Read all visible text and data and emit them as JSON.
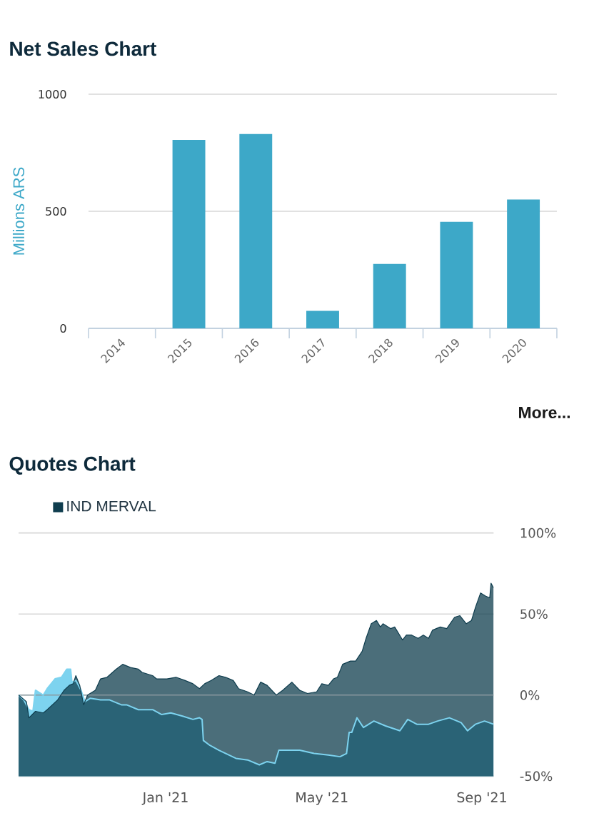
{
  "chart_data": [
    {
      "type": "bar",
      "title": "Net Sales Chart",
      "ylabel": "Millions ARS",
      "categories": [
        "2014",
        "2015",
        "2016",
        "2017",
        "2018",
        "2019",
        "2020"
      ],
      "values": [
        null,
        805,
        830,
        75,
        275,
        455,
        550
      ],
      "color": "#3da8c8",
      "ylim": [
        0,
        1000
      ],
      "yticks": [
        0,
        500,
        1000
      ],
      "grid": "y",
      "annotations": [
        "More..."
      ]
    },
    {
      "type": "area",
      "title": "Quotes Chart",
      "series": [
        {
          "color": "#7dd3ef",
          "x": [
            "2020-09-10",
            "2020-09-14",
            "2020-09-18",
            "2020-09-21",
            "2020-09-23",
            "2020-09-29",
            "2020-10-02",
            "2020-10-08",
            "2020-10-13",
            "2020-10-17",
            "2020-10-20",
            "2020-10-21",
            "2020-10-24",
            "2020-10-28",
            "2020-10-31",
            "2020-11-04",
            "2020-11-12",
            "2020-11-19",
            "2020-11-28",
            "2020-12-02",
            "2020-12-11",
            "2020-12-22",
            "2020-12-29",
            "2021-01-05",
            "2021-01-14",
            "2021-01-22",
            "2021-01-27",
            "2021-01-29",
            "2021-01-30",
            "2021-02-04",
            "2021-02-11",
            "2021-02-24",
            "2021-03-05",
            "2021-03-14",
            "2021-03-20",
            "2021-03-26",
            "2021-03-29",
            "2021-04-03",
            "2021-04-14",
            "2021-04-25",
            "2021-05-06",
            "2021-05-15",
            "2021-05-20",
            "2021-05-22",
            "2021-05-24",
            "2021-05-28",
            "2021-06-02",
            "2021-06-10",
            "2021-06-19",
            "2021-06-30",
            "2021-07-06",
            "2021-07-13",
            "2021-07-22",
            "2021-07-29",
            "2021-08-07",
            "2021-08-16",
            "2021-08-21",
            "2021-08-27",
            "2021-09-03",
            "2021-09-10"
          ],
          "values": [
            0,
            -3,
            -9,
            -10,
            3,
            0,
            4,
            10,
            11,
            16,
            16,
            8,
            9,
            3,
            -4,
            -2,
            -3,
            -3,
            -6,
            -6,
            -9,
            -9,
            -12,
            -11,
            -13,
            -15,
            -14,
            -15,
            -28,
            -31,
            -34,
            -39,
            -40,
            -43,
            -41,
            -42,
            -34,
            -34,
            -34,
            -36,
            -37,
            -38,
            -36,
            -23,
            -23,
            -14,
            -20,
            -16,
            -19,
            -22,
            -15,
            -18,
            -18,
            -16,
            -14,
            -17,
            -22,
            -18,
            -16,
            -18
          ]
        },
        {
          "name": "IND MERVAL",
          "color": "#0f3d4e",
          "x": [
            "2020-09-10",
            "2020-09-16",
            "2020-09-18",
            "2020-09-23",
            "2020-09-29",
            "2020-10-02",
            "2020-10-10",
            "2020-10-15",
            "2020-10-19",
            "2020-10-22",
            "2020-10-24",
            "2020-10-27",
            "2020-10-30",
            "2020-11-02",
            "2020-11-08",
            "2020-11-12",
            "2020-11-17",
            "2020-11-24",
            "2020-11-29",
            "2020-12-05",
            "2020-12-11",
            "2020-12-14",
            "2020-12-22",
            "2020-12-25",
            "2021-01-02",
            "2021-01-09",
            "2021-01-16",
            "2021-01-22",
            "2021-01-27",
            "2021-01-31",
            "2021-02-05",
            "2021-02-11",
            "2021-02-16",
            "2021-02-22",
            "2021-02-26",
            "2021-03-05",
            "2021-03-10",
            "2021-03-15",
            "2021-03-20",
            "2021-03-27",
            "2021-04-01",
            "2021-04-08",
            "2021-04-14",
            "2021-04-20",
            "2021-04-27",
            "2021-05-01",
            "2021-05-06",
            "2021-05-10",
            "2021-05-13",
            "2021-05-17",
            "2021-05-23",
            "2021-05-27",
            "2021-06-01",
            "2021-06-04",
            "2021-06-08",
            "2021-06-12",
            "2021-06-15",
            "2021-06-17",
            "2021-06-23",
            "2021-06-26",
            "2021-07-02",
            "2021-07-05",
            "2021-07-09",
            "2021-07-14",
            "2021-07-18",
            "2021-07-22",
            "2021-07-25",
            "2021-07-31",
            "2021-08-05",
            "2021-08-11",
            "2021-08-15",
            "2021-08-20",
            "2021-08-24",
            "2021-08-27",
            "2021-08-31",
            "2021-09-04",
            "2021-09-07",
            "2021-09-08",
            "2021-09-10"
          ],
          "values": [
            0,
            -4,
            -14,
            -10,
            -11,
            -9,
            -3,
            3,
            6,
            7,
            12,
            6,
            -6,
            0,
            3,
            10,
            11,
            16,
            19,
            17,
            16,
            14,
            12,
            10,
            10,
            11,
            9,
            7,
            4,
            7,
            9,
            12,
            11,
            9,
            4,
            2,
            0,
            8,
            6,
            0,
            3,
            8,
            3,
            1,
            2,
            7,
            6,
            10,
            11,
            19,
            21,
            21,
            27,
            35,
            44,
            46,
            42,
            44,
            41,
            42,
            34,
            37,
            37,
            35,
            37,
            35,
            40,
            42,
            41,
            48,
            49,
            44,
            46,
            54,
            63,
            61,
            60,
            69,
            66
          ]
        }
      ],
      "xlim": [
        "2020-09-10",
        "2021-09-10"
      ],
      "xticks": [
        {
          "value": "2021-01-01",
          "label": "Jan '21"
        },
        {
          "value": "2021-05-01",
          "label": "May '21"
        },
        {
          "value": "2021-09-01",
          "label": "Sep '21"
        }
      ],
      "ylim": [
        -50,
        100
      ],
      "yticks": [
        {
          "value": -50,
          "label": "-50%"
        },
        {
          "value": 0,
          "label": "0%"
        },
        {
          "value": 50,
          "label": "50%"
        },
        {
          "value": 100,
          "label": "100%"
        }
      ],
      "grid": "y",
      "legend": "top left",
      "ref_lines": [
        {
          "axis": "y",
          "value": 0,
          "color": "#8a9aa0"
        }
      ]
    }
  ]
}
